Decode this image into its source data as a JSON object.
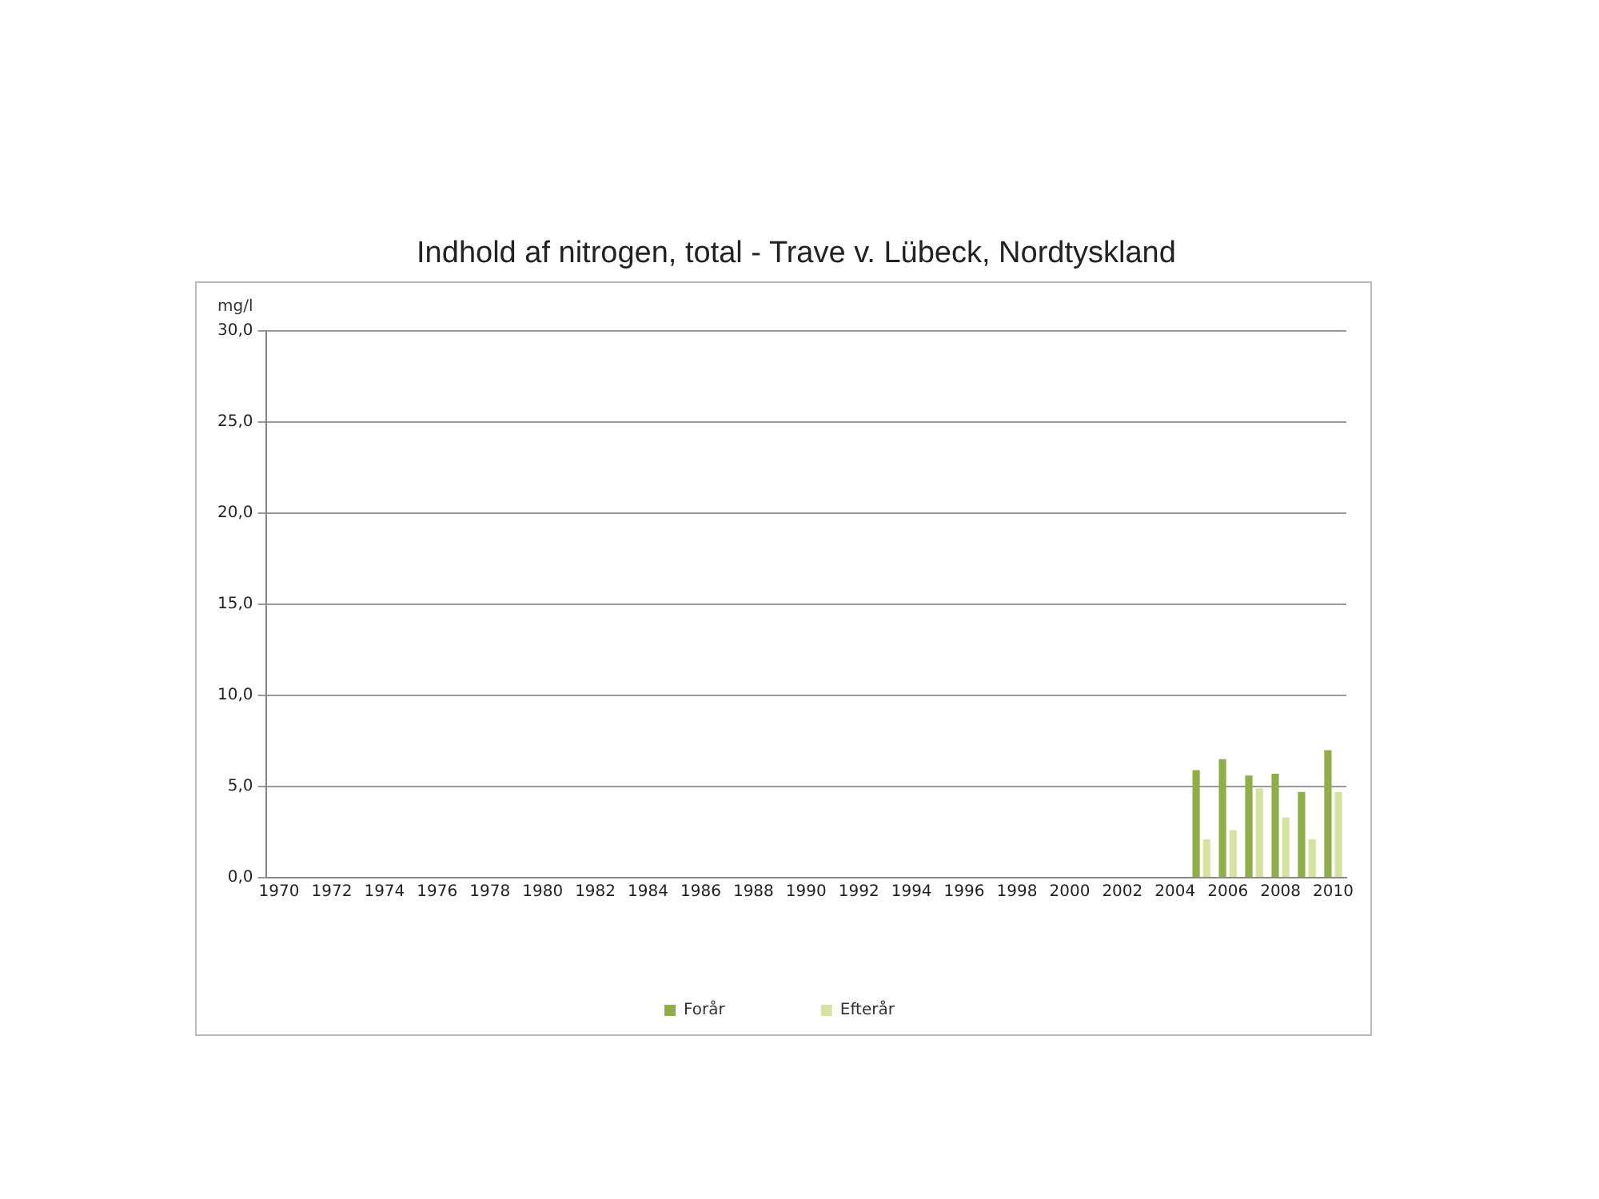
{
  "chart_data": {
    "type": "bar",
    "title": "Indhold af nitrogen, total - Trave v. Lübeck, Nordtyskland",
    "ylabel": "mg/l",
    "categories": [
      "1970",
      null,
      "1972",
      null,
      "1974",
      null,
      "1976",
      null,
      "1978",
      null,
      "1980",
      null,
      "1982",
      null,
      "1984",
      null,
      "1986",
      null,
      "1988",
      null,
      "1990",
      null,
      "1992",
      null,
      "1994",
      null,
      "1996",
      null,
      "1998",
      null,
      "2000",
      null,
      "2002",
      null,
      "2004",
      null,
      "2006",
      null,
      "2008",
      null,
      "2010"
    ],
    "series": [
      {
        "name": "Forår",
        "color": "#8fae4a",
        "values": [
          null,
          null,
          null,
          null,
          null,
          null,
          null,
          null,
          null,
          null,
          null,
          null,
          null,
          null,
          null,
          null,
          null,
          null,
          null,
          null,
          null,
          null,
          null,
          null,
          null,
          null,
          null,
          null,
          null,
          null,
          null,
          null,
          null,
          null,
          null,
          5.9,
          6.5,
          5.6,
          5.7,
          4.7,
          7.0
        ]
      },
      {
        "name": "Efterår",
        "color": "#d5e3a0",
        "values": [
          null,
          null,
          null,
          null,
          null,
          null,
          null,
          null,
          null,
          null,
          null,
          null,
          null,
          null,
          null,
          null,
          null,
          null,
          null,
          null,
          null,
          null,
          null,
          null,
          null,
          null,
          null,
          null,
          null,
          null,
          null,
          null,
          null,
          null,
          null,
          2.1,
          2.6,
          4.9,
          3.3,
          2.1,
          4.7
        ]
      }
    ],
    "ylim": [
      0,
      30
    ],
    "yticks": [
      {
        "value": 0,
        "label": "0,0"
      },
      {
        "value": 5,
        "label": "5,0"
      },
      {
        "value": 10,
        "label": "10,0"
      },
      {
        "value": 15,
        "label": "15,0"
      },
      {
        "value": 20,
        "label": "20,0"
      },
      {
        "value": 25,
        "label": "25,0"
      },
      {
        "value": 30,
        "label": "30,0"
      }
    ],
    "grid": "y",
    "legend": "bottom"
  }
}
